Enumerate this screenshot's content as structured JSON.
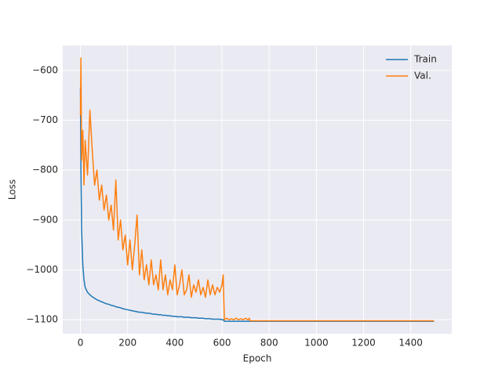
{
  "chart_data": {
    "type": "line",
    "xlabel": "Epoch",
    "ylabel": "Loss",
    "x": [
      0,
      2,
      5,
      10,
      15,
      20,
      30,
      40,
      50,
      60,
      70,
      80,
      90,
      100,
      110,
      120,
      130,
      140,
      150,
      160,
      170,
      180,
      190,
      200,
      210,
      220,
      230,
      240,
      250,
      260,
      270,
      280,
      290,
      300,
      310,
      320,
      330,
      340,
      350,
      360,
      370,
      380,
      390,
      400,
      410,
      420,
      430,
      440,
      450,
      460,
      470,
      480,
      490,
      500,
      510,
      520,
      530,
      540,
      550,
      560,
      570,
      580,
      590,
      600,
      605,
      610,
      620,
      630,
      640,
      650,
      660,
      670,
      680,
      690,
      700,
      710,
      715,
      720,
      800,
      900,
      1000,
      1100,
      1200,
      1300,
      1400,
      1499
    ],
    "series": [
      {
        "name": "Train",
        "color": "#1f77b4",
        "values": [
          -635,
          -800,
          -920,
          -990,
          -1020,
          -1035,
          -1045,
          -1050,
          -1054,
          -1057,
          -1060,
          -1062,
          -1064,
          -1066,
          -1068,
          -1069,
          -1071,
          -1072,
          -1074,
          -1075,
          -1076,
          -1078,
          -1079,
          -1080,
          -1081,
          -1082,
          -1083,
          -1084,
          -1085,
          -1085,
          -1086,
          -1087,
          -1087,
          -1088,
          -1089,
          -1089,
          -1090,
          -1090,
          -1091,
          -1091,
          -1092,
          -1092,
          -1093,
          -1093,
          -1094,
          -1094,
          -1094,
          -1095,
          -1095,
          -1095,
          -1096,
          -1096,
          -1096,
          -1097,
          -1097,
          -1097,
          -1098,
          -1098,
          -1098,
          -1099,
          -1099,
          -1099,
          -1099,
          -1100,
          -1100,
          -1103,
          -1103,
          -1103,
          -1103,
          -1103,
          -1103,
          -1103,
          -1103,
          -1103,
          -1103,
          -1103,
          -1103,
          -1103,
          -1103,
          -1103,
          -1103,
          -1103,
          -1103,
          -1103,
          -1103,
          -1103
        ]
      },
      {
        "name": "Val.",
        "color": "#ff7f0e",
        "values": [
          -690,
          -575,
          -780,
          -720,
          -830,
          -740,
          -810,
          -680,
          -760,
          -830,
          -800,
          -860,
          -830,
          -880,
          -850,
          -900,
          -870,
          -920,
          -820,
          -940,
          -900,
          -960,
          -930,
          -990,
          -940,
          -1000,
          -950,
          -890,
          -1010,
          -960,
          -1020,
          -990,
          -1030,
          -980,
          -1030,
          -1010,
          -1040,
          -980,
          -1040,
          -1010,
          -1050,
          -1020,
          -1040,
          -990,
          -1050,
          -1030,
          -1000,
          -1050,
          -1040,
          -1010,
          -1055,
          -1030,
          -1045,
          -1020,
          -1050,
          -1035,
          -1055,
          -1020,
          -1050,
          -1030,
          -1050,
          -1035,
          -1045,
          -1030,
          -1010,
          -1100,
          -1097,
          -1100,
          -1098,
          -1100,
          -1097,
          -1100,
          -1098,
          -1100,
          -1097,
          -1100,
          -1097,
          -1102,
          -1102,
          -1102,
          -1102,
          -1102,
          -1102,
          -1102,
          -1102,
          -1102
        ]
      }
    ],
    "xlim": [
      -75,
      1574
    ],
    "ylim": [
      -1128,
      -550
    ],
    "xticks": [
      0,
      200,
      400,
      600,
      800,
      1000,
      1200,
      1400
    ],
    "yticks": [
      {
        "value": -1100,
        "label": "−1100"
      },
      {
        "value": -1000,
        "label": "−1000"
      },
      {
        "value": -900,
        "label": "−900"
      },
      {
        "value": -800,
        "label": "−800"
      },
      {
        "value": -700,
        "label": "−700"
      },
      {
        "value": -600,
        "label": "−600"
      }
    ],
    "grid": true,
    "legend": "upper right"
  }
}
